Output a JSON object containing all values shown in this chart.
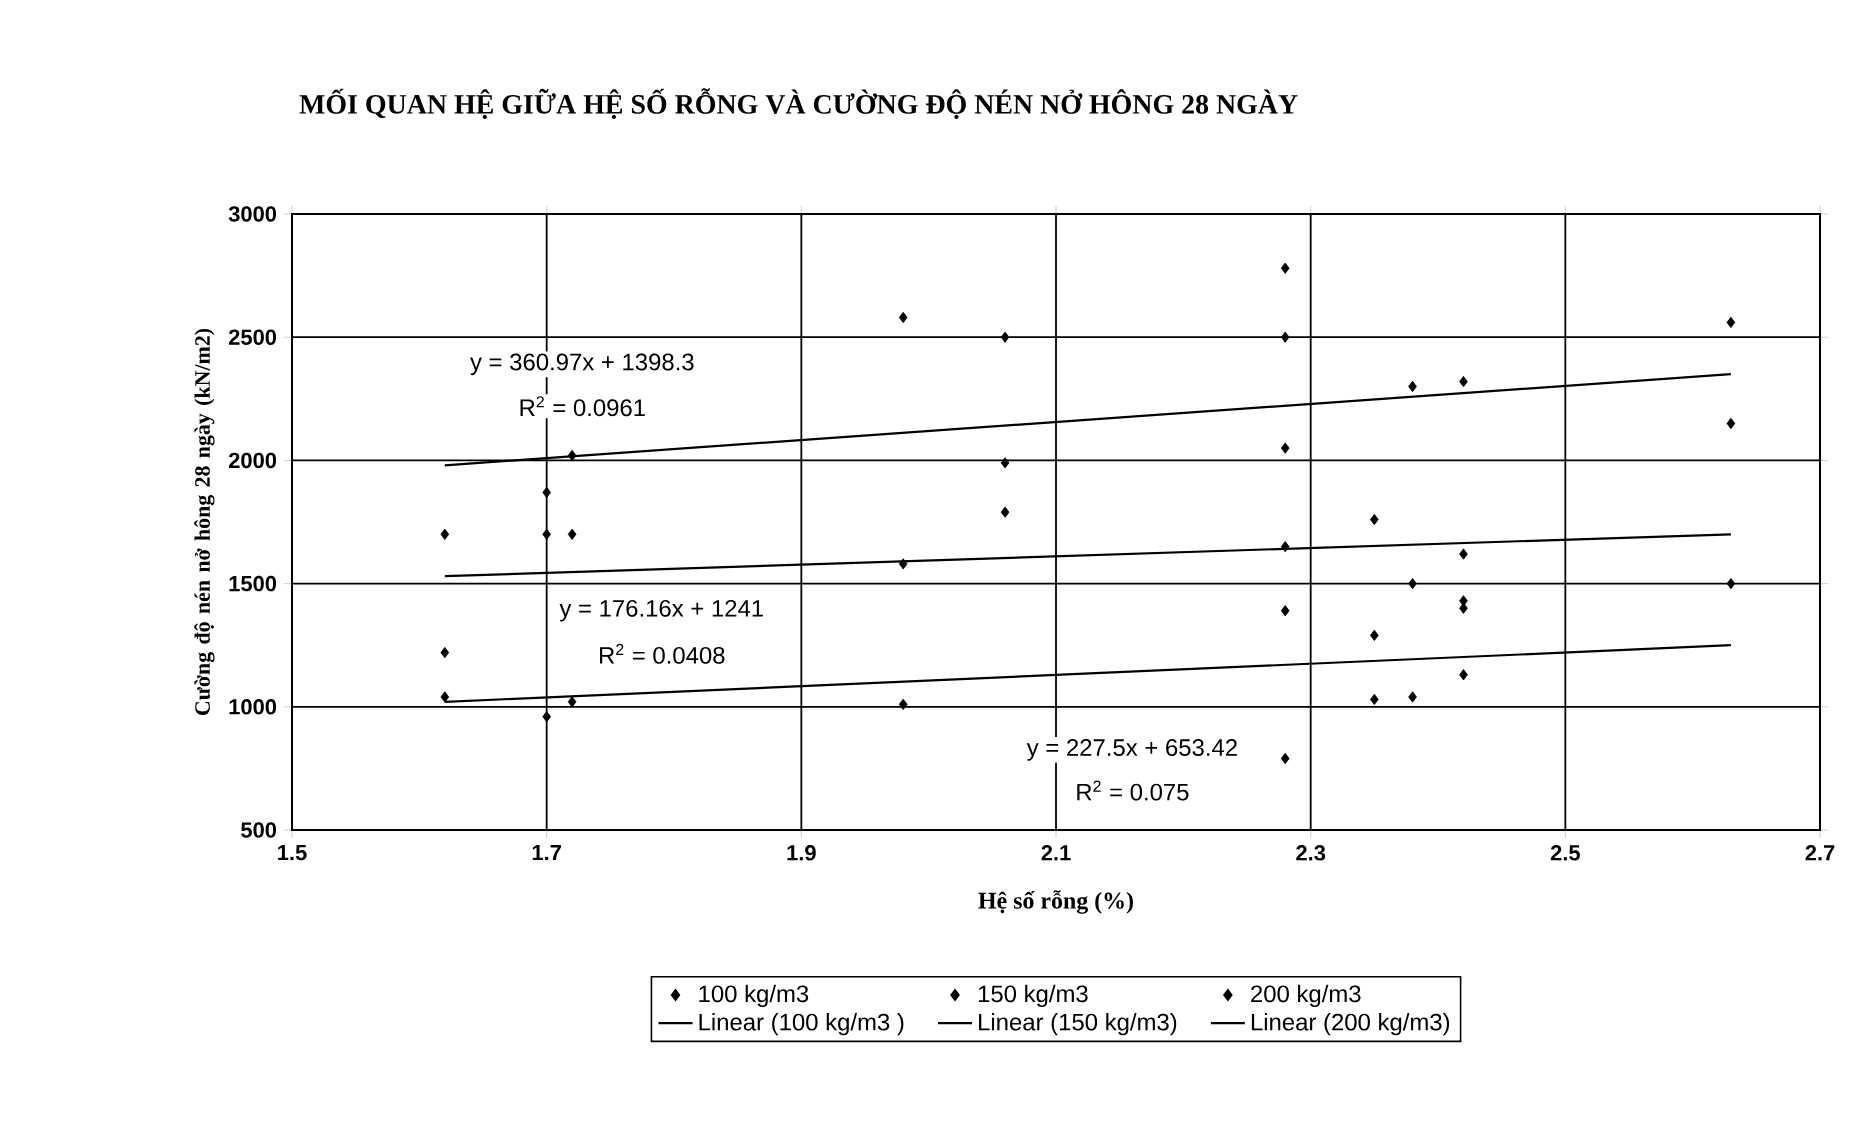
{
  "chart_data": {
    "type": "scatter",
    "title": "MỐI QUAN HỆ GIỮA HỆ SỐ RỖNG VÀ CƯỜNG ĐỘ NÉN NỞ HÔNG 28 NGÀY",
    "xlabel": "Hệ số rỗng (%)",
    "ylabel": "Cường độ nén nở hông 28 ngày (kN/m2)",
    "xlim": [
      1.5,
      2.7
    ],
    "xticks": [
      1.5,
      1.7,
      1.9,
      2.1,
      2.3,
      2.5,
      2.7
    ],
    "ylim": [
      500,
      3000
    ],
    "yticks": [
      500,
      1000,
      1500,
      2000,
      2500,
      3000
    ],
    "grid": true,
    "legend": "bottom",
    "line_style": "solid",
    "series": [
      {
        "name": "100 kg/m3",
        "marker": "diamond",
        "color": "#000000",
        "x": [
          1.62,
          1.62,
          1.7,
          1.72,
          1.98,
          2.28,
          2.28,
          2.35,
          2.35,
          2.38,
          2.42
        ],
        "values": [
          1220,
          1040,
          960,
          1020,
          1010,
          790,
          1390,
          1290,
          1030,
          1040,
          1130
        ]
      },
      {
        "name": "150 kg/m3",
        "marker": "diamond",
        "color": "#000000",
        "x": [
          1.62,
          1.7,
          1.7,
          1.72,
          1.98,
          2.06,
          2.28,
          2.35,
          2.38,
          2.42,
          2.42,
          2.42,
          2.63
        ],
        "values": [
          1700,
          1870,
          1700,
          1700,
          1580,
          1790,
          1650,
          1760,
          1500,
          1620,
          1430,
          1400,
          1500
        ]
      },
      {
        "name": "200 kg/m3",
        "marker": "diamond",
        "color": "#000000",
        "x": [
          1.72,
          1.98,
          2.06,
          2.06,
          2.28,
          2.28,
          2.28,
          2.38,
          2.42,
          2.63,
          2.63
        ],
        "values": [
          2020,
          2580,
          2500,
          1990,
          2780,
          2500,
          2050,
          2300,
          2320,
          2560,
          2150
        ]
      },
      {
        "name": "Linear (100 kg/m3 )",
        "type": "line",
        "color": "#000000",
        "x": [
          1.62,
          2.63
        ],
        "values": [
          1020,
          1250
        ]
      },
      {
        "name": "Linear (150 kg/m3)",
        "type": "line",
        "color": "#000000",
        "x": [
          1.62,
          2.63
        ],
        "values": [
          1530,
          1700
        ]
      },
      {
        "name": "Linear (200 kg/m3)",
        "type": "line",
        "color": "#000000",
        "x": [
          1.62,
          2.63
        ],
        "values": [
          1980,
          2350
        ]
      }
    ],
    "annotations": [
      "y = 360.97x + 1398.3",
      "R$^{2}$ = 0.0961",
      "y = 176.16x + 1241",
      "R$^{2}$ = 0.0408",
      "y = 227.5x + 653.42",
      "R$^{2}$ = 0.075"
    ]
  }
}
